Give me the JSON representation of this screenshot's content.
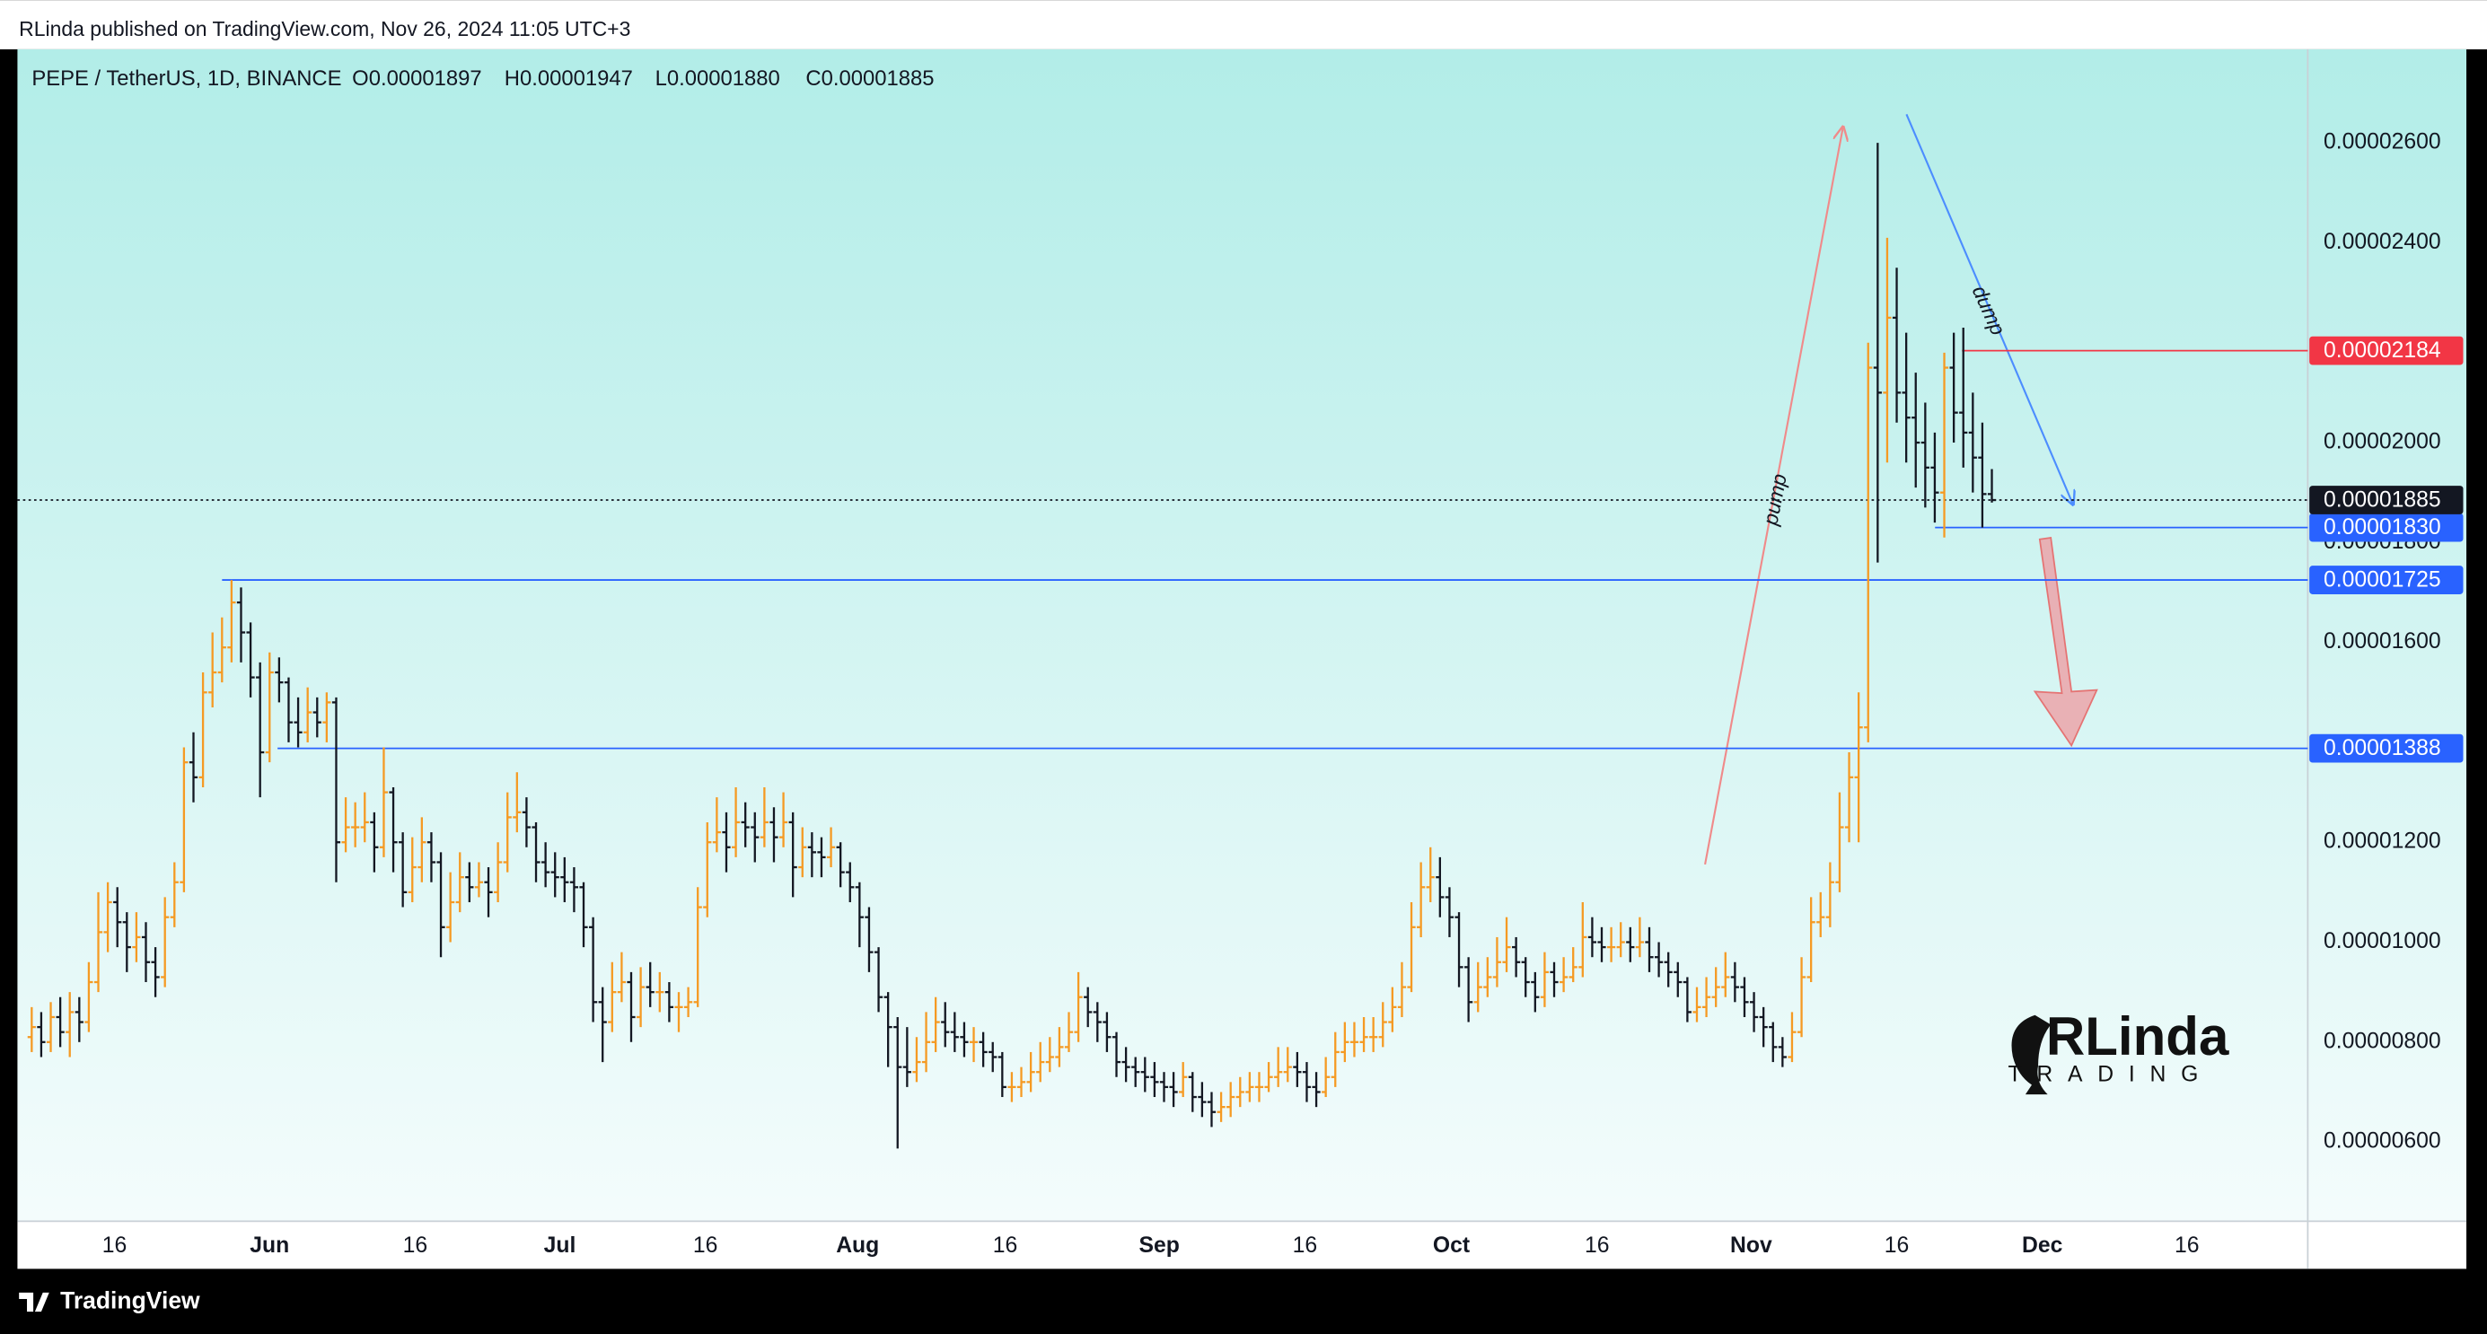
{
  "header": "RLinda published on TradingView.com, Nov 26, 2024 11:05 UTC+3",
  "footer": "TradingView",
  "chart_data": {
    "type": "ohlc",
    "title": "PEPE / TetherUS, 1D, BINANCE",
    "ohlc_legend": [
      "O0.00001897",
      "H0.00001947",
      "L0.00001880",
      "C0.00001885"
    ],
    "up_color": "#f59a23",
    "down_color": "#131722",
    "grid": false,
    "xlim": [
      -1.5,
      239.2
    ],
    "xticks": [
      {
        "value": 8.7,
        "label": "16"
      },
      {
        "value": 25,
        "label": "Jun"
      },
      {
        "value": 40.3,
        "label": "16"
      },
      {
        "value": 55.5,
        "label": "Jul"
      },
      {
        "value": 70.8,
        "label": "16"
      },
      {
        "value": 86.8,
        "label": "Aug"
      },
      {
        "value": 102.3,
        "label": "16"
      },
      {
        "value": 118.5,
        "label": "Sep"
      },
      {
        "value": 133.8,
        "label": "16"
      },
      {
        "value": 149.2,
        "label": "Oct"
      },
      {
        "value": 164.5,
        "label": "16"
      },
      {
        "value": 180.7,
        "label": "Nov"
      },
      {
        "value": 196,
        "label": "16"
      },
      {
        "value": 211.3,
        "label": "Dec"
      },
      {
        "value": 226.5,
        "label": "16"
      }
    ],
    "ylim": [
      4.413e-06,
      2.7873e-05
    ],
    "yticks": [
      {
        "value": 6e-06,
        "label": "0.00000600"
      },
      {
        "value": 8e-06,
        "label": "0.00000800"
      },
      {
        "value": 1e-05,
        "label": "0.00001000"
      },
      {
        "value": 1.2e-05,
        "label": "0.00001200"
      },
      {
        "value": 1.6e-05,
        "label": "0.00001600"
      },
      {
        "value": 1.8e-05,
        "label": "0.00001800"
      },
      {
        "value": 2e-05,
        "label": "0.00002000"
      },
      {
        "value": 2.4e-05,
        "label": "0.00002400"
      },
      {
        "value": 2.6e-05,
        "label": "0.00002600"
      }
    ],
    "open": [
      8.1e-06,
      8.3e-06,
      8e-06,
      8.5e-06,
      8.2e-06,
      8.6e-06,
      8.4e-06,
      9.2e-06,
      1.02e-05,
      1.08e-05,
      1.04e-05,
      9.9e-06,
      1.01e-05,
      9.6e-06,
      9.3e-06,
      1.05e-05,
      1.12e-05,
      1.36e-05,
      1.33e-05,
      1.5e-05,
      1.54e-05,
      1.59e-05,
      1.68e-05,
      1.62e-05,
      1.53e-05,
      1.38e-05,
      1.54e-05,
      1.52e-05,
      1.44e-05,
      1.42e-05,
      1.46e-05,
      1.44e-05,
      1.48e-05,
      1.2e-05,
      1.23e-05,
      1.23e-05,
      1.24e-05,
      1.19e-05,
      1.3e-05,
      1.2e-05,
      1.1e-05,
      1.15e-05,
      1.2e-05,
      1.16e-05,
      1.03e-05,
      1.08e-05,
      1.13e-05,
      1.11e-05,
      1.12e-05,
      1.1e-05,
      1.16e-05,
      1.25e-05,
      1.26e-05,
      1.23e-05,
      1.16e-05,
      1.14e-05,
      1.13e-05,
      1.12e-05,
      1.11e-05,
      1.03e-05,
      8.8e-06,
      8.4e-06,
      9e-06,
      9.2e-06,
      8.5e-06,
      9.1e-06,
      9e-06,
      9e-06,
      8.7e-06,
      8.7e-06,
      8.8e-06,
      1.07e-05,
      1.2e-05,
      1.22e-05,
      1.19e-05,
      1.24e-05,
      1.23e-05,
      1.21e-05,
      1.24e-05,
      1.21e-05,
      1.24e-05,
      1.15e-05,
      1.19e-05,
      1.18e-05,
      1.17e-05,
      1.19e-05,
      1.14e-05,
      1.11e-05,
      1.05e-05,
      9.8e-06,
      8.9e-06,
      8.3e-06,
      7.5e-06,
      7.4e-06,
      7.6e-06,
      8e-06,
      8.4e-06,
      8.2e-06,
      8.1e-06,
      8e-06,
      8e-06,
      7.8e-06,
      7.7e-06,
      7.1e-06,
      7.1e-06,
      7.2e-06,
      7.4e-06,
      7.6e-06,
      7.7e-06,
      7.9e-06,
      8.2e-06,
      8.9e-06,
      8.6e-06,
      8.4e-06,
      8.1e-06,
      7.6e-06,
      7.5e-06,
      7.4e-06,
      7.3e-06,
      7.2e-06,
      7.1e-06,
      7e-06,
      7.3e-06,
      6.9e-06,
      6.8e-06,
      6.6e-06,
      6.7e-06,
      6.9e-06,
      7e-06,
      7.1e-06,
      7.1e-06,
      7.3e-06,
      7.4e-06,
      7.5e-06,
      7.4e-06,
      7.1e-06,
      7e-06,
      7.3e-06,
      7.8e-06,
      8e-06,
      8e-06,
      8.1e-06,
      8.1e-06,
      8.4e-06,
      8.7e-06,
      9.1e-06,
      1.03e-05,
      1.11e-05,
      1.13e-05,
      1.09e-05,
      1.05e-05,
      9.5e-06,
      8.8e-06,
      9.1e-06,
      9.3e-06,
      9.6e-06,
      9.9e-06,
      9.6e-06,
      9.2e-06,
      8.9e-06,
      9.4e-06,
      9.2e-06,
      9.3e-06,
      9.5e-06,
      1.01e-05,
      1e-05,
      9.9e-06,
      9.9e-06,
      1e-05,
      9.9e-06,
      1e-05,
      9.7e-06,
      9.6e-06,
      9.4e-06,
      9.2e-06,
      8.6e-06,
      8.7e-06,
      8.9e-06,
      9.1e-06,
      9.3e-06,
      9.1e-06,
      8.8e-06,
      8.5e-06,
      8.3e-06,
      7.9e-06,
      7.7e-06,
      8.2e-06,
      9.3e-06,
      1.04e-05,
      1.05e-05,
      1.12e-05,
      1.23e-05,
      1.33e-05,
      1.43e-05,
      2.15e-05,
      2.1e-05,
      2.25e-05,
      2.1e-05,
      2.05e-05,
      2e-05,
      1.95e-05,
      1.9e-05,
      2.15e-05,
      2.06e-05,
      2.02e-05,
      1.97e-05,
      1.897e-05
    ],
    "high": [
      8.7e-06,
      8.6e-06,
      8.8e-06,
      8.9e-06,
      9e-06,
      8.9e-06,
      9.6e-06,
      1.1e-05,
      1.12e-05,
      1.11e-05,
      1.06e-05,
      1.06e-05,
      1.04e-05,
      9.9e-06,
      1.09e-05,
      1.16e-05,
      1.39e-05,
      1.42e-05,
      1.54e-05,
      1.62e-05,
      1.65e-05,
      1.725e-05,
      1.71e-05,
      1.64e-05,
      1.56e-05,
      1.58e-05,
      1.57e-05,
      1.53e-05,
      1.49e-05,
      1.51e-05,
      1.49e-05,
      1.5e-05,
      1.49e-05,
      1.29e-05,
      1.28e-05,
      1.3e-05,
      1.26e-05,
      1.39e-05,
      1.31e-05,
      1.22e-05,
      1.21e-05,
      1.25e-05,
      1.22e-05,
      1.18e-05,
      1.14e-05,
      1.18e-05,
      1.16e-05,
      1.16e-05,
      1.15e-05,
      1.2e-05,
      1.3e-05,
      1.34e-05,
      1.29e-05,
      1.24e-05,
      1.2e-05,
      1.18e-05,
      1.17e-05,
      1.15e-05,
      1.12e-05,
      1.05e-05,
      9.1e-06,
      9.6e-06,
      9.8e-06,
      9.4e-06,
      9.5e-06,
      9.6e-06,
      9.4e-06,
      9.2e-06,
      9e-06,
      9.1e-06,
      1.11e-05,
      1.24e-05,
      1.29e-05,
      1.26e-05,
      1.31e-05,
      1.28e-05,
      1.26e-05,
      1.31e-05,
      1.27e-05,
      1.3e-05,
      1.26e-05,
      1.23e-05,
      1.22e-05,
      1.21e-05,
      1.23e-05,
      1.2e-05,
      1.16e-05,
      1.12e-05,
      1.07e-05,
      9.9e-06,
      9e-06,
      8.5e-06,
      8.3e-06,
      8.1e-06,
      8.6e-06,
      8.9e-06,
      8.8e-06,
      8.6e-06,
      8.4e-06,
      8.3e-06,
      8.2e-06,
      8e-06,
      7.8e-06,
      7.4e-06,
      7.5e-06,
      7.8e-06,
      8e-06,
      8.1e-06,
      8.3e-06,
      8.6e-06,
      9.4e-06,
      9.1e-06,
      8.8e-06,
      8.6e-06,
      8.2e-06,
      7.9e-06,
      7.7e-06,
      7.7e-06,
      7.6e-06,
      7.4e-06,
      7.4e-06,
      7.6e-06,
      7.4e-06,
      7.2e-06,
      7e-06,
      7e-06,
      7.2e-06,
      7.3e-06,
      7.4e-06,
      7.4e-06,
      7.6e-06,
      7.9e-06,
      7.9e-06,
      7.8e-06,
      7.6e-06,
      7.4e-06,
      7.7e-06,
      8.2e-06,
      8.4e-06,
      8.4e-06,
      8.5e-06,
      8.5e-06,
      8.8e-06,
      9.1e-06,
      9.6e-06,
      1.08e-05,
      1.16e-05,
      1.19e-05,
      1.17e-05,
      1.11e-05,
      1.06e-05,
      9.7e-06,
      9.6e-06,
      9.7e-06,
      1.01e-05,
      1.05e-05,
      1.01e-05,
      9.7e-06,
      9.4e-06,
      9.8e-06,
      9.6e-06,
      9.7e-06,
      9.9e-06,
      1.08e-05,
      1.05e-05,
      1.03e-05,
      1.03e-05,
      1.04e-05,
      1.03e-05,
      1.05e-05,
      1.03e-05,
      1e-05,
      9.8e-06,
      9.6e-06,
      9.3e-06,
      9.1e-06,
      9.3e-06,
      9.5e-06,
      9.8e-06,
      9.6e-06,
      9.3e-06,
      9e-06,
      8.7e-06,
      8.4e-06,
      8.1e-06,
      8.6e-06,
      9.7e-06,
      1.09e-05,
      1.1e-05,
      1.16e-05,
      1.3e-05,
      1.38e-05,
      1.5e-05,
      2.2e-05,
      2.6e-05,
      2.41e-05,
      2.35e-05,
      2.22e-05,
      2.14e-05,
      2.08e-05,
      2.02e-05,
      2.18e-05,
      2.22e-05,
      2.23e-05,
      2.1e-05,
      2.04e-05,
      1.947e-05
    ],
    "low": [
      7.8e-06,
      7.7e-06,
      7.8e-06,
      7.9e-06,
      7.7e-06,
      8e-06,
      8.2e-06,
      9e-06,
      9.8e-06,
      9.9e-06,
      9.4e-06,
      9.6e-06,
      9.2e-06,
      8.9e-06,
      9.1e-06,
      1.03e-05,
      1.1e-05,
      1.28e-05,
      1.31e-05,
      1.47e-05,
      1.52e-05,
      1.56e-05,
      1.56e-05,
      1.49e-05,
      1.29e-05,
      1.36e-05,
      1.48e-05,
      1.4e-05,
      1.39e-05,
      1.4e-05,
      1.41e-05,
      1.4e-05,
      1.12e-05,
      1.18e-05,
      1.19e-05,
      1.2e-05,
      1.14e-05,
      1.17e-05,
      1.14e-05,
      1.07e-05,
      1.08e-05,
      1.12e-05,
      1.12e-05,
      9.7e-06,
      1e-05,
      1.06e-05,
      1.08e-05,
      1.09e-05,
      1.05e-05,
      1.08e-05,
      1.14e-05,
      1.22e-05,
      1.19e-05,
      1.12e-05,
      1.11e-05,
      1.09e-05,
      1.08e-05,
      1.06e-05,
      9.9e-06,
      8.4e-06,
      7.6e-06,
      8.2e-06,
      8.8e-06,
      8e-06,
      8.3e-06,
      8.7e-06,
      8.6e-06,
      8.4e-06,
      8.2e-06,
      8.5e-06,
      8.7e-06,
      1.05e-05,
      1.18e-05,
      1.14e-05,
      1.17e-05,
      1.19e-05,
      1.16e-05,
      1.19e-05,
      1.16e-05,
      1.19e-05,
      1.09e-05,
      1.13e-05,
      1.13e-05,
      1.13e-05,
      1.15e-05,
      1.11e-05,
      1.08e-05,
      9.9e-06,
      9.4e-06,
      8.6e-06,
      7.5e-06,
      5.87e-06,
      7.1e-06,
      7.2e-06,
      7.4e-06,
      7.8e-06,
      7.9e-06,
      7.8e-06,
      7.7e-06,
      7.6e-06,
      7.5e-06,
      7.4e-06,
      6.9e-06,
      6.8e-06,
      6.9e-06,
      7e-06,
      7.2e-06,
      7.4e-06,
      7.5e-06,
      7.8e-06,
      8e-06,
      8.3e-06,
      8e-06,
      7.8e-06,
      7.3e-06,
      7.2e-06,
      7.1e-06,
      7e-06,
      6.9e-06,
      6.8e-06,
      6.7e-06,
      6.9e-06,
      6.6e-06,
      6.5e-06,
      6.3e-06,
      6.4e-06,
      6.5e-06,
      6.7e-06,
      6.8e-06,
      6.8e-06,
      7e-06,
      7.1e-06,
      7.2e-06,
      7.1e-06,
      6.8e-06,
      6.7e-06,
      6.9e-06,
      7.1e-06,
      7.6e-06,
      7.7e-06,
      7.8e-06,
      7.8e-06,
      7.9e-06,
      8.2e-06,
      8.5e-06,
      9e-06,
      1.01e-05,
      1.08e-05,
      1.05e-05,
      1.01e-05,
      9.1e-06,
      8.4e-06,
      8.6e-06,
      8.9e-06,
      9.1e-06,
      9.4e-06,
      9.3e-06,
      8.9e-06,
      8.6e-06,
      8.7e-06,
      8.9e-06,
      9e-06,
      9.2e-06,
      9.3e-06,
      9.7e-06,
      9.6e-06,
      9.6e-06,
      9.7e-06,
      9.6e-06,
      9.7e-06,
      9.4e-06,
      9.3e-06,
      9.1e-06,
      8.9e-06,
      8.4e-06,
      8.4e-06,
      8.5e-06,
      8.7e-06,
      8.9e-06,
      8.8e-06,
      8.5e-06,
      8.2e-06,
      7.9e-06,
      7.6e-06,
      7.5e-06,
      7.6e-06,
      8.1e-06,
      9.2e-06,
      1.01e-05,
      1.03e-05,
      1.1e-05,
      1.2e-05,
      1.2e-05,
      1.4e-05,
      1.76e-05,
      1.96e-05,
      2.04e-05,
      1.96e-05,
      1.91e-05,
      1.87e-05,
      1.84e-05,
      1.81e-05,
      2e-05,
      1.95e-05,
      1.9e-05,
      1.83e-05,
      1.88e-05
    ],
    "close": [
      8.3e-06,
      8e-06,
      8.5e-06,
      8.2e-06,
      8.6e-06,
      8.4e-06,
      9.2e-06,
      1.02e-05,
      1.08e-05,
      1.04e-05,
      9.9e-06,
      1.01e-05,
      9.6e-06,
      9.3e-06,
      1.05e-05,
      1.12e-05,
      1.36e-05,
      1.33e-05,
      1.5e-05,
      1.54e-05,
      1.59e-05,
      1.68e-05,
      1.62e-05,
      1.53e-05,
      1.38e-05,
      1.54e-05,
      1.52e-05,
      1.44e-05,
      1.42e-05,
      1.46e-05,
      1.44e-05,
      1.48e-05,
      1.2e-05,
      1.23e-05,
      1.23e-05,
      1.24e-05,
      1.19e-05,
      1.3e-05,
      1.2e-05,
      1.1e-05,
      1.15e-05,
      1.2e-05,
      1.16e-05,
      1.03e-05,
      1.08e-05,
      1.13e-05,
      1.11e-05,
      1.12e-05,
      1.1e-05,
      1.16e-05,
      1.25e-05,
      1.26e-05,
      1.23e-05,
      1.16e-05,
      1.14e-05,
      1.13e-05,
      1.12e-05,
      1.11e-05,
      1.03e-05,
      8.8e-06,
      8.4e-06,
      9e-06,
      9.2e-06,
      8.5e-06,
      9.1e-06,
      9e-06,
      9e-06,
      8.7e-06,
      8.7e-06,
      8.8e-06,
      1.07e-05,
      1.2e-05,
      1.22e-05,
      1.19e-05,
      1.24e-05,
      1.23e-05,
      1.21e-05,
      1.24e-05,
      1.21e-05,
      1.24e-05,
      1.15e-05,
      1.19e-05,
      1.18e-05,
      1.17e-05,
      1.19e-05,
      1.14e-05,
      1.11e-05,
      1.05e-05,
      9.8e-06,
      8.9e-06,
      8.3e-06,
      7.5e-06,
      7.4e-06,
      7.6e-06,
      8e-06,
      8.4e-06,
      8.2e-06,
      8.1e-06,
      8e-06,
      8e-06,
      7.8e-06,
      7.7e-06,
      7.1e-06,
      7.1e-06,
      7.2e-06,
      7.4e-06,
      7.6e-06,
      7.7e-06,
      7.9e-06,
      8.2e-06,
      8.9e-06,
      8.6e-06,
      8.4e-06,
      8.1e-06,
      7.6e-06,
      7.5e-06,
      7.4e-06,
      7.3e-06,
      7.2e-06,
      7.1e-06,
      7e-06,
      7.3e-06,
      6.9e-06,
      6.8e-06,
      6.6e-06,
      6.7e-06,
      6.9e-06,
      7e-06,
      7.1e-06,
      7.1e-06,
      7.3e-06,
      7.4e-06,
      7.5e-06,
      7.4e-06,
      7.1e-06,
      7e-06,
      7.3e-06,
      7.8e-06,
      8e-06,
      8e-06,
      8.1e-06,
      8.1e-06,
      8.4e-06,
      8.7e-06,
      9.1e-06,
      1.03e-05,
      1.11e-05,
      1.13e-05,
      1.09e-05,
      1.05e-05,
      9.5e-06,
      8.8e-06,
      9.1e-06,
      9.3e-06,
      9.6e-06,
      9.9e-06,
      9.6e-06,
      9.2e-06,
      8.9e-06,
      9.4e-06,
      9.2e-06,
      9.3e-06,
      9.5e-06,
      1.01e-05,
      1e-05,
      9.9e-06,
      9.9e-06,
      1e-05,
      9.9e-06,
      1e-05,
      9.7e-06,
      9.6e-06,
      9.4e-06,
      9.2e-06,
      8.6e-06,
      8.7e-06,
      8.9e-06,
      9.1e-06,
      9.3e-06,
      9.1e-06,
      8.8e-06,
      8.5e-06,
      8.3e-06,
      7.9e-06,
      7.7e-06,
      8.2e-06,
      9.3e-06,
      1.04e-05,
      1.05e-05,
      1.12e-05,
      1.23e-05,
      1.33e-05,
      1.43e-05,
      2.15e-05,
      2.1e-05,
      2.25e-05,
      2.1e-05,
      2.05e-05,
      2e-05,
      1.95e-05,
      1.9e-05,
      2.15e-05,
      2.06e-05,
      2.02e-05,
      1.97e-05,
      1.897e-05,
      1.885e-05
    ],
    "levels": [
      {
        "value": 2.184e-05,
        "label": "0.00002184",
        "color": "#f23645"
      },
      {
        "value": 1.83e-05,
        "label": "0.00001830",
        "color": "#2962ff"
      },
      {
        "value": 1.725e-05,
        "label": "0.00001725",
        "color": "#2962ff"
      },
      {
        "value": 1.388e-05,
        "label": "0.00001388",
        "color": "#2962ff"
      }
    ],
    "last_price": {
      "value": 1.885e-05,
      "label": "0.00001885"
    },
    "annotations": [
      "pump",
      "dump"
    ],
    "watermark": [
      "RLinda",
      "TRADING"
    ]
  }
}
